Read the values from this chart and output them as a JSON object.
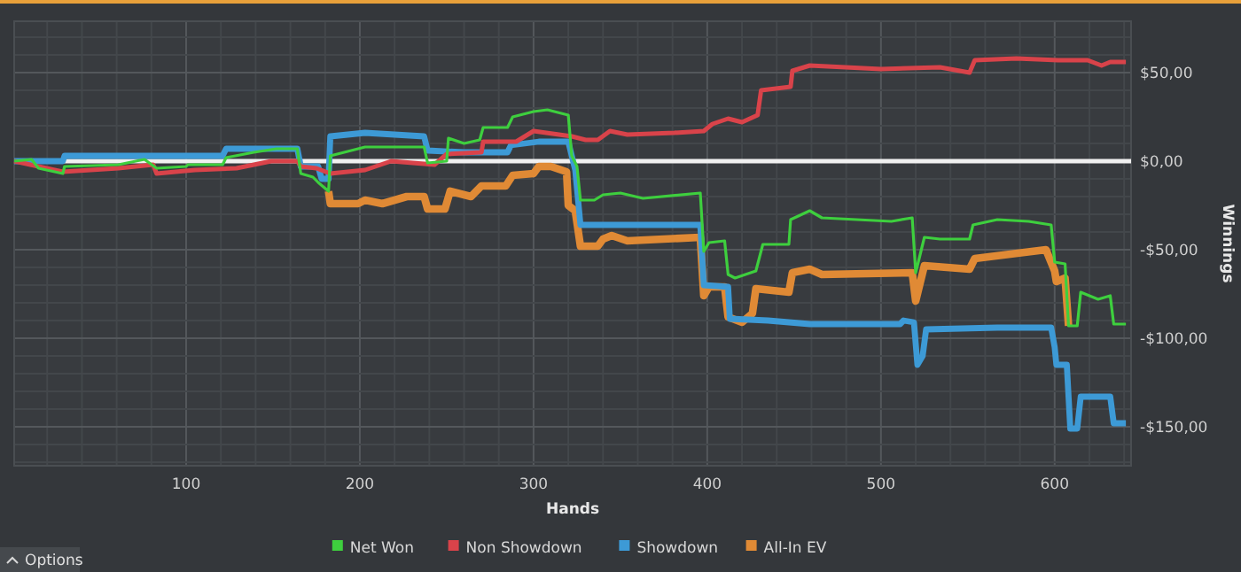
{
  "chart_data": {
    "type": "line",
    "xlabel": "Hands",
    "ylabel": "Winnings",
    "xlim": [
      1,
      644
    ],
    "ylim": [
      -172,
      79
    ],
    "xticks": [
      {
        "value": 20,
        "label": null
      },
      {
        "value": 40,
        "label": null
      },
      {
        "value": 60,
        "label": null
      },
      {
        "value": 80,
        "label": null
      },
      100,
      {
        "value": 120,
        "label": null
      },
      {
        "value": 140,
        "label": null
      },
      {
        "value": 160,
        "label": null
      },
      {
        "value": 180,
        "label": null
      },
      200,
      {
        "value": 220,
        "label": null
      },
      {
        "value": 240,
        "label": null
      },
      {
        "value": 260,
        "label": null
      },
      {
        "value": 280,
        "label": null
      },
      300,
      {
        "value": 320,
        "label": null
      },
      {
        "value": 340,
        "label": null
      },
      {
        "value": 360,
        "label": null
      },
      {
        "value": 380,
        "label": null
      },
      400,
      {
        "value": 420,
        "label": null
      },
      {
        "value": 440,
        "label": null
      },
      {
        "value": 460,
        "label": null
      },
      {
        "value": 480,
        "label": null
      },
      500,
      {
        "value": 520,
        "label": null
      },
      {
        "value": 540,
        "label": null
      },
      {
        "value": 560,
        "label": null
      },
      {
        "value": 580,
        "label": null
      },
      600,
      {
        "value": 620,
        "label": null
      },
      {
        "value": 640,
        "label": null
      }
    ],
    "yticks": [
      {
        "value": -170,
        "label": null
      },
      {
        "value": -160,
        "label": null
      },
      {
        "value": -150,
        "label": "-$150,00"
      },
      {
        "value": -140,
        "label": null
      },
      {
        "value": -130,
        "label": null
      },
      {
        "value": -120,
        "label": null
      },
      {
        "value": -110,
        "label": null
      },
      {
        "value": -100,
        "label": "-$100,00"
      },
      {
        "value": -90,
        "label": null
      },
      {
        "value": -80,
        "label": null
      },
      {
        "value": -70,
        "label": null
      },
      {
        "value": -60,
        "label": null
      },
      {
        "value": -50,
        "label": "-$50,00"
      },
      {
        "value": -40,
        "label": null
      },
      {
        "value": -30,
        "label": null
      },
      {
        "value": -20,
        "label": null
      },
      {
        "value": -10,
        "label": null
      },
      {
        "value": 0,
        "label": "$0,00"
      },
      {
        "value": 10,
        "label": null
      },
      {
        "value": 20,
        "label": null
      },
      {
        "value": 30,
        "label": null
      },
      {
        "value": 40,
        "label": null
      },
      {
        "value": 50,
        "label": "$50,00"
      },
      {
        "value": 60,
        "label": null
      },
      {
        "value": 70,
        "label": null
      }
    ],
    "grid": true,
    "legend": "bottom",
    "marker": "none",
    "line_style": "solid",
    "ref_lines": [
      {
        "axis": "y",
        "value": 0,
        "color": "#f0f0f0"
      }
    ],
    "annotations": [
      "Options"
    ],
    "series": [
      {
        "name": "Net Won",
        "color": "#3ecf3e",
        "x": [
          1,
          11,
          15,
          29,
          30,
          61,
          76,
          83,
          100,
          101,
          121,
          123,
          139,
          152,
          164,
          166,
          173,
          176,
          182,
          183,
          203,
          237,
          239,
          250,
          251,
          260,
          269,
          271,
          285,
          288,
          300,
          308,
          320,
          322,
          325,
          327,
          335,
          340,
          350,
          363,
          396,
          398,
          401,
          410,
          412,
          416,
          428,
          432,
          447,
          448,
          459,
          466,
          506,
          518,
          520,
          525,
          534,
          551,
          553,
          567,
          585,
          598,
          600,
          606,
          608,
          613,
          615,
          625,
          632,
          634,
          641
        ],
        "values": [
          0,
          1,
          -4,
          -7,
          -3,
          -2,
          1,
          -4,
          -3,
          -2,
          -2,
          2,
          5,
          7,
          7,
          -7,
          -9,
          -12,
          -17,
          3,
          8,
          8,
          -1,
          0,
          13,
          10,
          12,
          19,
          19,
          25,
          28,
          29,
          26,
          3,
          -3,
          -22,
          -22,
          -19,
          -18,
          -21,
          -18,
          -51,
          -46,
          -45,
          -64,
          -66,
          -62,
          -47,
          -47,
          -33,
          -28,
          -32,
          -34,
          -32,
          -63,
          -43,
          -44,
          -44,
          -36,
          -33,
          -34,
          -36,
          -57,
          -58,
          -93,
          -93,
          -74,
          -78,
          -76,
          -92,
          -92
        ]
      },
      {
        "name": "Non Showdown",
        "color": "#d9434a",
        "x": [
          1,
          29,
          61,
          81,
          83,
          105,
          129,
          149,
          164,
          166,
          175,
          183,
          203,
          218,
          243,
          250,
          270,
          271,
          290,
          300,
          322,
          330,
          337,
          344,
          354,
          381,
          398,
          403,
          412,
          420,
          429,
          431,
          448,
          449,
          459,
          500,
          534,
          551,
          554,
          578,
          602,
          619,
          627,
          632,
          641
        ],
        "values": [
          0,
          -6,
          -4,
          -2,
          -7,
          -5,
          -4,
          0,
          0,
          -3,
          -4,
          -7,
          -5,
          0,
          -2,
          4,
          5,
          11,
          11,
          17,
          14,
          12,
          12,
          17,
          15,
          16,
          17,
          21,
          24,
          22,
          26,
          40,
          42,
          51,
          54,
          52,
          53,
          50,
          57,
          58,
          57,
          57,
          54,
          56,
          56
        ]
      },
      {
        "name": "Showdown",
        "color": "#3d9ad6",
        "x": [
          1,
          29,
          30,
          121,
          123,
          164,
          166,
          176,
          178,
          182,
          183,
          203,
          237,
          239,
          260,
          285,
          287,
          303,
          320,
          324,
          327,
          396,
          398,
          412,
          413,
          435,
          459,
          511,
          513,
          519,
          521,
          524,
          526,
          567,
          598,
          600,
          601,
          607,
          609,
          613,
          615,
          632,
          634,
          641
        ],
        "values": [
          0,
          0,
          3,
          3,
          7,
          7,
          -3,
          -3,
          -10,
          -10,
          14,
          16,
          14,
          6,
          5,
          5,
          9,
          11,
          11,
          -5,
          -36,
          -36,
          -70,
          -71,
          -89,
          -90,
          -92,
          -92,
          -90,
          -91,
          -115,
          -110,
          -95,
          -94,
          -94,
          -105,
          -115,
          -115,
          -151,
          -151,
          -133,
          -133,
          -148,
          -148
        ]
      },
      {
        "name": "All-In EV",
        "color": "#e08a35",
        "x": [
          182,
          183,
          199,
          203,
          213,
          227,
          237,
          239,
          249,
          252,
          264,
          270,
          284,
          288,
          300,
          303,
          310,
          319,
          320,
          324,
          327,
          337,
          340,
          345,
          354,
          396,
          398,
          401,
          410,
          412,
          420,
          426,
          428,
          447,
          449,
          459,
          466,
          518,
          520,
          525,
          551,
          554,
          595,
          600,
          601,
          606,
          608
        ],
        "values": [
          -17,
          -24,
          -24,
          -22,
          -24,
          -20,
          -20,
          -27,
          -27,
          -17,
          -20,
          -14,
          -14,
          -8,
          -7,
          -3,
          -3,
          -6,
          -25,
          -28,
          -48,
          -48,
          -44,
          -42,
          -45,
          -43,
          -76,
          -71,
          -71,
          -88,
          -91,
          -86,
          -72,
          -74,
          -63,
          -61,
          -64,
          -63,
          -79,
          -59,
          -61,
          -55,
          -50,
          -62,
          -68,
          -66,
          -93
        ]
      }
    ]
  }
}
